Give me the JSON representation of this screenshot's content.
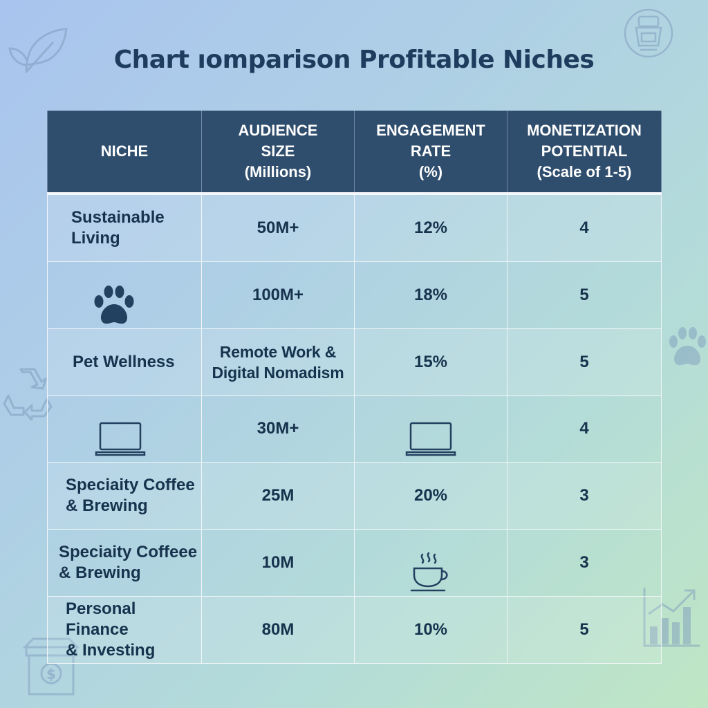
{
  "title": "Chart ıomparison Profitable Niches",
  "chart_data": {
    "type": "table",
    "columns": [
      "NICHE",
      "AUDIENCE\nSIZE\n(Millions)",
      "ENGAGEMENT\nRATE\n(%)",
      "MONETIZATION\nPOTENTIAL\n(Scale of 1-5)"
    ],
    "rows": [
      [
        "Sustainable\nLiving",
        "50M+",
        "12%",
        "4"
      ],
      [
        "",
        "100M+",
        "18%",
        "5"
      ],
      [
        "Pet Wellness",
        "Remote Work &\nDigital Nomadism",
        "15%",
        "5"
      ],
      [
        "",
        "30M+",
        "",
        "4"
      ],
      [
        "Speciaity Coffee\n& Brewing",
        "25M",
        "20%",
        "3"
      ],
      [
        "Speciaity Coffeee\n& Brewing",
        "10M",
        "",
        "3"
      ],
      [
        "Personal Finance\n& Investing",
        "80M",
        "10%",
        "5"
      ]
    ],
    "cell_icons": {
      "row2_niche": "paw-icon",
      "row4_niche": "laptop-icon",
      "row4_engagement": "laptop-icon",
      "row6_engagement": "coffee-cup-icon"
    }
  },
  "colors": {
    "header_bg": "#2f4d6d",
    "header_text": "#ffffff",
    "cell_text": "#17324d",
    "title_text": "#1e3d5e",
    "grid_line": "#f1f5f8"
  },
  "decorations": [
    "leaf-icon",
    "coffee-grinder-icon",
    "paw-icon",
    "recycle-icon",
    "bar-chart-growth-icon",
    "money-jar-icon"
  ]
}
